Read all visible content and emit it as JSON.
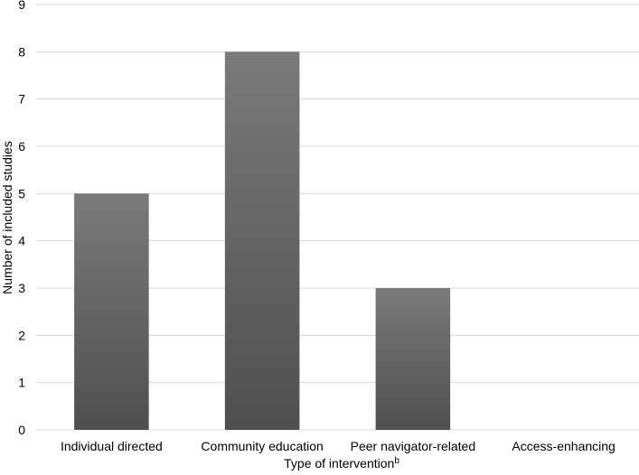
{
  "chart_data": {
    "type": "bar",
    "categories": [
      "Individual directed",
      "Community education",
      "Peer navigator-related",
      "Access-enhancing"
    ],
    "values": [
      5,
      8,
      3,
      0
    ],
    "title": "",
    "xlabel": "Type of intervention",
    "xlabel_superscript": "b",
    "ylabel": "Number of included studies",
    "ylim": [
      0,
      9
    ],
    "yticks": [
      "0",
      "1",
      "2",
      "3",
      "4",
      "5",
      "6",
      "7",
      "8",
      "9"
    ],
    "grid": true,
    "legend": "none",
    "colors": {
      "bar_top": "#7a7a7a",
      "bar_bottom": "#4f4f4f",
      "grid": "#d9d9d9",
      "axis": "#d9d9d9"
    }
  }
}
